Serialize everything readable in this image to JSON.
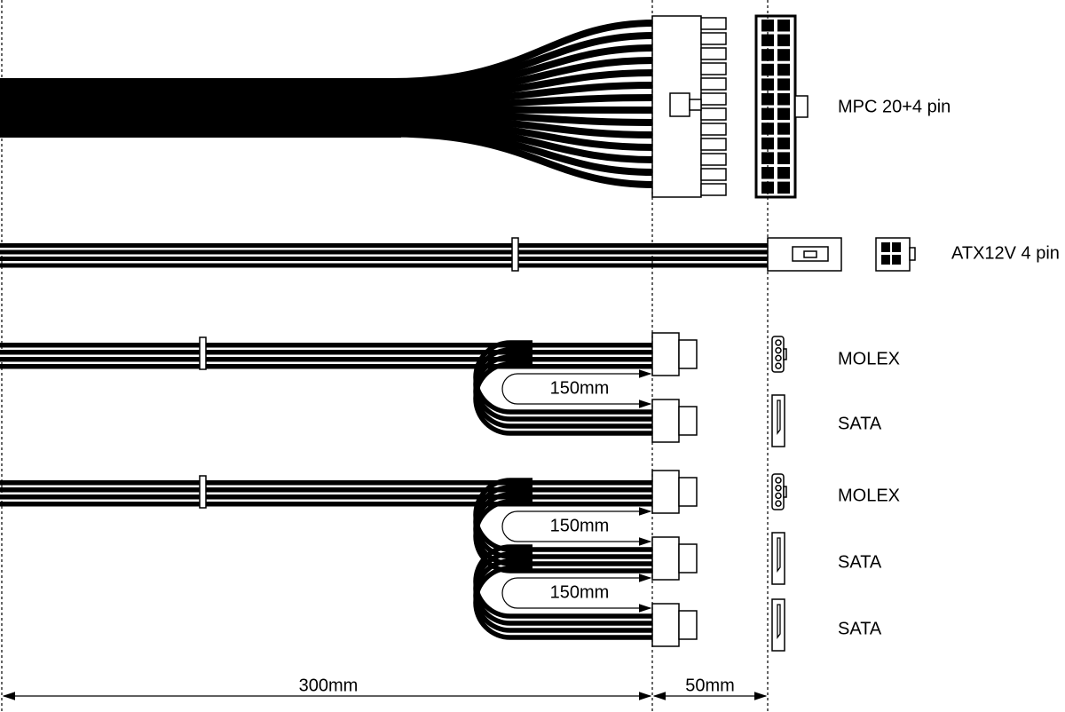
{
  "connectors": [
    {
      "label": "MPC 20+4 pin"
    },
    {
      "label": "ATX12V 4 pin"
    },
    {
      "label": "MOLEX"
    },
    {
      "label": "SATA"
    },
    {
      "label": "MOLEX"
    },
    {
      "label": "SATA"
    },
    {
      "label": "SATA"
    }
  ],
  "dimensions": {
    "spacing": [
      "150mm",
      "150mm",
      "150mm"
    ],
    "main_length": "300mm",
    "end_length": "50mm"
  }
}
